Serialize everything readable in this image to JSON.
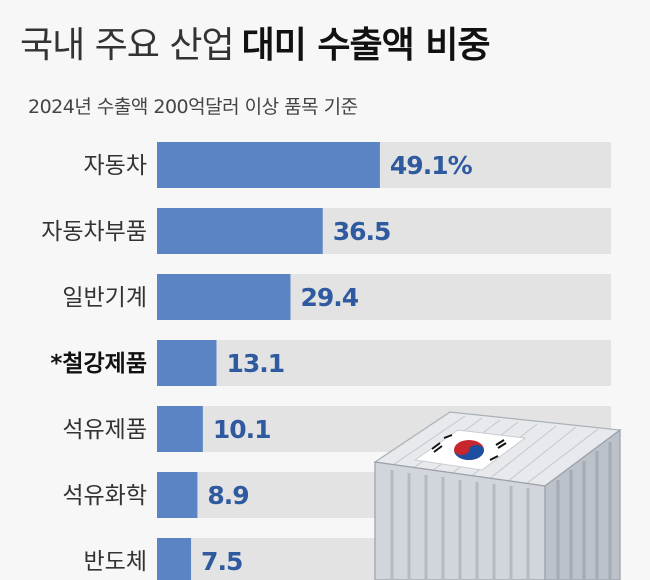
{
  "header": {
    "title_light": "국내 주요 산업",
    "title_bold": "대미 수출액 비중",
    "subtitle": "2024년 수출액 200억달러 이상 품목 기준"
  },
  "colors": {
    "bar": "#5b84c4",
    "track": "#e3e3e3",
    "value_text": "#2f5aa0",
    "label_text": "#333333"
  },
  "chart_data": {
    "type": "bar",
    "orientation": "horizontal",
    "categories": [
      "자동차",
      "자동차부품",
      "일반기계",
      "*철강제품",
      "석유제품",
      "석유화학",
      "반도체"
    ],
    "values": [
      49.1,
      36.5,
      29.4,
      13.1,
      10.1,
      8.9,
      7.5
    ],
    "value_labels": [
      "49.1%",
      "36.5",
      "29.4",
      "13.1",
      "10.1",
      "8.9",
      "7.5"
    ],
    "highlight_category": "*철강제품",
    "xlim": [
      0,
      100
    ],
    "unit": "%"
  }
}
